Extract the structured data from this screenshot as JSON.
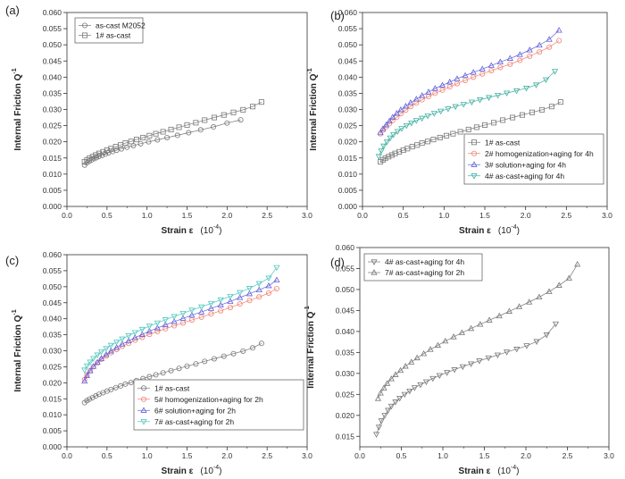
{
  "chart_data": [
    {
      "type": "scatter",
      "panel": "(a)",
      "xlabel": "Strain ε",
      "xunit": "(10",
      "xunit_exp": "-4",
      "ylabel": "Internal Friction Q",
      "ylabel_exp": "-1",
      "xlim": [
        0,
        3.0
      ],
      "ylim": [
        0,
        0.06
      ],
      "xticks": [
        "0.0",
        "0.5",
        "1.0",
        "1.5",
        "2.0",
        "2.5",
        "3.0"
      ],
      "yticks": [
        "0.000",
        "0.005",
        "0.010",
        "0.015",
        "0.020",
        "0.025",
        "0.030",
        "0.035",
        "0.040",
        "0.045",
        "0.050",
        "0.055",
        "0.060"
      ],
      "legend": "top-left",
      "series": [
        {
          "name": "as-cast M2052",
          "color": "#777777",
          "marker": "circle",
          "x": [
            0.22,
            0.25,
            0.28,
            0.31,
            0.34,
            0.37,
            0.4,
            0.44,
            0.48,
            0.52,
            0.57,
            0.62,
            0.68,
            0.75,
            0.83,
            0.92,
            1.02,
            1.13,
            1.25,
            1.38,
            1.52,
            1.67,
            1.83,
            2.0,
            2.17
          ],
          "y": [
            0.0128,
            0.0135,
            0.014,
            0.0144,
            0.0148,
            0.0151,
            0.0155,
            0.0158,
            0.0162,
            0.0166,
            0.017,
            0.0174,
            0.0178,
            0.0183,
            0.0188,
            0.0194,
            0.02,
            0.0206,
            0.0213,
            0.022,
            0.0228,
            0.0237,
            0.0246,
            0.0258,
            0.0268
          ]
        },
        {
          "name": "1#  as-cast",
          "color": "#777777",
          "marker": "square",
          "x": [
            0.22,
            0.25,
            0.28,
            0.32,
            0.36,
            0.4,
            0.45,
            0.5,
            0.55,
            0.61,
            0.67,
            0.73,
            0.8,
            0.87,
            0.95,
            1.03,
            1.11,
            1.2,
            1.3,
            1.4,
            1.5,
            1.61,
            1.72,
            1.84,
            1.96,
            2.08,
            2.2,
            2.32,
            2.43
          ],
          "y": [
            0.0138,
            0.0144,
            0.0149,
            0.0154,
            0.0159,
            0.0164,
            0.0169,
            0.0174,
            0.0179,
            0.0185,
            0.019,
            0.0196,
            0.0201,
            0.0207,
            0.0213,
            0.0219,
            0.0225,
            0.0231,
            0.0238,
            0.0245,
            0.0252,
            0.0259,
            0.0267,
            0.0275,
            0.0283,
            0.0291,
            0.0299,
            0.0309,
            0.0323
          ]
        }
      ]
    },
    {
      "type": "scatter",
      "panel": "(b)",
      "xlabel": "Strain ε",
      "xunit": "(10",
      "xunit_exp": "-4",
      "ylabel": "Internal Friction Q",
      "ylabel_exp": "-1",
      "xlim": [
        0,
        3.0
      ],
      "ylim": [
        0,
        0.06
      ],
      "xticks": [
        "0.0",
        "0.5",
        "1.0",
        "1.5",
        "2.0",
        "2.5",
        "3.0"
      ],
      "yticks": [
        "0.000",
        "0.005",
        "0.010",
        "0.015",
        "0.020",
        "0.025",
        "0.030",
        "0.035",
        "0.040",
        "0.045",
        "0.050",
        "0.055",
        "0.060"
      ],
      "legend": "bottom-right",
      "series": [
        {
          "name": "1#  as-cast",
          "color": "#777777",
          "marker": "square",
          "x": [
            0.22,
            0.25,
            0.28,
            0.32,
            0.36,
            0.4,
            0.45,
            0.5,
            0.55,
            0.61,
            0.67,
            0.73,
            0.8,
            0.87,
            0.95,
            1.03,
            1.11,
            1.2,
            1.3,
            1.4,
            1.5,
            1.61,
            1.72,
            1.84,
            1.96,
            2.08,
            2.2,
            2.32,
            2.43
          ],
          "y": [
            0.0138,
            0.0144,
            0.0149,
            0.0154,
            0.0159,
            0.0164,
            0.0169,
            0.0174,
            0.0179,
            0.0185,
            0.019,
            0.0196,
            0.0201,
            0.0207,
            0.0213,
            0.0219,
            0.0225,
            0.0231,
            0.0238,
            0.0245,
            0.0252,
            0.0259,
            0.0267,
            0.0275,
            0.0283,
            0.0291,
            0.0299,
            0.0309,
            0.0323
          ]
        },
        {
          "name": "2#  homogenization+aging for 4h",
          "color": "#f08070",
          "marker": "circle",
          "x": [
            0.22,
            0.25,
            0.29,
            0.33,
            0.37,
            0.42,
            0.47,
            0.53,
            0.59,
            0.66,
            0.73,
            0.81,
            0.89,
            0.98,
            1.07,
            1.16,
            1.26,
            1.36,
            1.47,
            1.58,
            1.69,
            1.81,
            1.93,
            2.05,
            2.17,
            2.29,
            2.41
          ],
          "y": [
            0.0225,
            0.0236,
            0.0246,
            0.0256,
            0.0266,
            0.0276,
            0.0287,
            0.0298,
            0.0309,
            0.032,
            0.033,
            0.034,
            0.035,
            0.036,
            0.037,
            0.038,
            0.039,
            0.04,
            0.041,
            0.042,
            0.043,
            0.044,
            0.0452,
            0.0465,
            0.0478,
            0.0493,
            0.0513
          ]
        },
        {
          "name": "3#  solution+aging for 4h",
          "color": "#6060dd",
          "marker": "triangle-up",
          "x": [
            0.22,
            0.25,
            0.29,
            0.33,
            0.37,
            0.42,
            0.47,
            0.53,
            0.59,
            0.66,
            0.73,
            0.81,
            0.89,
            0.98,
            1.07,
            1.16,
            1.26,
            1.36,
            1.47,
            1.58,
            1.69,
            1.81,
            1.93,
            2.05,
            2.17,
            2.29,
            2.41
          ],
          "y": [
            0.0228,
            0.024,
            0.0252,
            0.0264,
            0.0276,
            0.0288,
            0.0299,
            0.031,
            0.0321,
            0.0332,
            0.0343,
            0.0354,
            0.0365,
            0.0375,
            0.0385,
            0.0395,
            0.0405,
            0.0415,
            0.0425,
            0.0436,
            0.0447,
            0.0458,
            0.047,
            0.0484,
            0.0499,
            0.0517,
            0.0545
          ]
        },
        {
          "name": "4#  as-cast+aging for 4h",
          "color": "#40b0a0",
          "marker": "triangle-down",
          "x": [
            0.2,
            0.23,
            0.26,
            0.3,
            0.34,
            0.38,
            0.43,
            0.48,
            0.54,
            0.6,
            0.66,
            0.73,
            0.8,
            0.88,
            0.96,
            1.05,
            1.14,
            1.24,
            1.34,
            1.44,
            1.55,
            1.66,
            1.77,
            1.89,
            2.01,
            2.13,
            2.25,
            2.36
          ],
          "y": [
            0.0155,
            0.0172,
            0.0187,
            0.02,
            0.0212,
            0.0222,
            0.0232,
            0.0241,
            0.025,
            0.0258,
            0.0266,
            0.0273,
            0.028,
            0.0288,
            0.0295,
            0.0302,
            0.0309,
            0.0316,
            0.0323,
            0.033,
            0.0337,
            0.0344,
            0.0351,
            0.0358,
            0.0366,
            0.0376,
            0.0392,
            0.0418
          ]
        }
      ]
    },
    {
      "type": "scatter",
      "panel": "(c)",
      "xlabel": "Strain ε",
      "xunit": "(10",
      "xunit_exp": "-4",
      "ylabel": "Internal Friction Q",
      "ylabel_exp": "-1",
      "xlim": [
        0,
        3.0
      ],
      "ylim": [
        0,
        0.06
      ],
      "xticks": [
        "0.0",
        "0.5",
        "1.0",
        "1.5",
        "2.0",
        "2.5",
        "3.0"
      ],
      "yticks": [
        "0.000",
        "0.005",
        "0.010",
        "0.015",
        "0.020",
        "0.025",
        "0.030",
        "0.035",
        "0.040",
        "0.045",
        "0.050",
        "0.055",
        "0.060"
      ],
      "legend": "bottom-right",
      "series": [
        {
          "name": "1#  as-cast",
          "color": "#777777",
          "marker": "circle",
          "x": [
            0.22,
            0.25,
            0.28,
            0.32,
            0.36,
            0.4,
            0.45,
            0.5,
            0.55,
            0.61,
            0.67,
            0.73,
            0.8,
            0.87,
            0.95,
            1.03,
            1.11,
            1.2,
            1.3,
            1.4,
            1.5,
            1.61,
            1.72,
            1.84,
            1.96,
            2.08,
            2.2,
            2.32,
            2.43
          ],
          "y": [
            0.0138,
            0.0144,
            0.0149,
            0.0154,
            0.0159,
            0.0164,
            0.0169,
            0.0174,
            0.0179,
            0.0185,
            0.019,
            0.0196,
            0.0201,
            0.0207,
            0.0213,
            0.0219,
            0.0225,
            0.0231,
            0.0238,
            0.0245,
            0.0252,
            0.0259,
            0.0267,
            0.0275,
            0.0283,
            0.0291,
            0.0299,
            0.0309,
            0.0323
          ]
        },
        {
          "name": "5#  homogenization+aging for 2h",
          "color": "#f08070",
          "marker": "circle",
          "x": [
            0.22,
            0.25,
            0.29,
            0.33,
            0.38,
            0.43,
            0.49,
            0.55,
            0.62,
            0.69,
            0.77,
            0.85,
            0.94,
            1.03,
            1.13,
            1.23,
            1.34,
            1.45,
            1.56,
            1.68,
            1.8,
            1.92,
            2.04,
            2.16,
            2.28,
            2.4,
            2.52,
            2.62
          ],
          "y": [
            0.021,
            0.0225,
            0.0238,
            0.025,
            0.0262,
            0.0273,
            0.0284,
            0.0294,
            0.0304,
            0.0314,
            0.0323,
            0.0333,
            0.0342,
            0.0351,
            0.036,
            0.0369,
            0.0378,
            0.0387,
            0.0396,
            0.0405,
            0.0415,
            0.0425,
            0.0435,
            0.0446,
            0.0457,
            0.0468,
            0.048,
            0.0494
          ]
        },
        {
          "name": "6#  solution+aging for 2h",
          "color": "#6060dd",
          "marker": "triangle-up",
          "x": [
            0.22,
            0.25,
            0.29,
            0.33,
            0.38,
            0.43,
            0.49,
            0.55,
            0.62,
            0.69,
            0.77,
            0.85,
            0.94,
            1.03,
            1.13,
            1.23,
            1.34,
            1.45,
            1.56,
            1.68,
            1.8,
            1.92,
            2.04,
            2.16,
            2.28,
            2.4,
            2.52,
            2.62
          ],
          "y": [
            0.0205,
            0.0222,
            0.0237,
            0.0251,
            0.0264,
            0.0276,
            0.0288,
            0.0299,
            0.031,
            0.0321,
            0.0331,
            0.0341,
            0.0351,
            0.0361,
            0.0371,
            0.0381,
            0.0391,
            0.0401,
            0.0411,
            0.0421,
            0.0432,
            0.0443,
            0.0454,
            0.0466,
            0.0478,
            0.049,
            0.0503,
            0.0521
          ]
        },
        {
          "name": "7#  as-cast+aging for 2h",
          "color": "#50c8c0",
          "marker": "triangle-down",
          "x": [
            0.22,
            0.25,
            0.29,
            0.33,
            0.38,
            0.43,
            0.49,
            0.55,
            0.62,
            0.69,
            0.77,
            0.85,
            0.94,
            1.03,
            1.13,
            1.23,
            1.34,
            1.45,
            1.56,
            1.68,
            1.8,
            1.92,
            2.04,
            2.16,
            2.28,
            2.4,
            2.52,
            2.62
          ],
          "y": [
            0.024,
            0.0253,
            0.0265,
            0.0276,
            0.0287,
            0.0297,
            0.0307,
            0.0317,
            0.0327,
            0.0337,
            0.0347,
            0.0357,
            0.0367,
            0.0377,
            0.0387,
            0.0397,
            0.0407,
            0.0417,
            0.0427,
            0.0437,
            0.0448,
            0.0459,
            0.047,
            0.0482,
            0.0495,
            0.051,
            0.0527,
            0.056
          ]
        }
      ]
    },
    {
      "type": "scatter",
      "panel": "(d)",
      "xlabel": "Strain ε",
      "xunit": "(10",
      "xunit_exp": "-4",
      "ylabel": "Internal Friction Q",
      "ylabel_exp": "-1",
      "xlim": [
        0,
        3.0
      ],
      "ylim": [
        0.0125,
        0.06
      ],
      "xticks": [
        "0.0",
        "0.5",
        "1.0",
        "1.5",
        "2.0",
        "2.5",
        "3.0"
      ],
      "yticks": [
        "0.015",
        "0.020",
        "0.025",
        "0.030",
        "0.035",
        "0.040",
        "0.045",
        "0.050",
        "0.055",
        "0.060"
      ],
      "legend": "top-left",
      "series": [
        {
          "name": "4#  as-cast+aging for 4h",
          "color": "#777777",
          "marker": "triangle-down",
          "x": [
            0.2,
            0.23,
            0.26,
            0.3,
            0.34,
            0.38,
            0.43,
            0.48,
            0.54,
            0.6,
            0.66,
            0.73,
            0.8,
            0.88,
            0.96,
            1.05,
            1.14,
            1.24,
            1.34,
            1.44,
            1.55,
            1.66,
            1.77,
            1.89,
            2.01,
            2.13,
            2.25,
            2.36
          ],
          "y": [
            0.0155,
            0.0172,
            0.0187,
            0.02,
            0.0212,
            0.0222,
            0.0232,
            0.0241,
            0.025,
            0.0258,
            0.0266,
            0.0273,
            0.028,
            0.0288,
            0.0295,
            0.0302,
            0.0309,
            0.0316,
            0.0323,
            0.033,
            0.0337,
            0.0344,
            0.0351,
            0.0358,
            0.0366,
            0.0376,
            0.0392,
            0.0418
          ]
        },
        {
          "name": "7#  as-cast+aging for 2h",
          "color": "#777777",
          "marker": "triangle-up",
          "x": [
            0.22,
            0.25,
            0.29,
            0.33,
            0.38,
            0.43,
            0.49,
            0.55,
            0.62,
            0.69,
            0.77,
            0.85,
            0.94,
            1.03,
            1.13,
            1.23,
            1.34,
            1.45,
            1.56,
            1.68,
            1.8,
            1.92,
            2.04,
            2.16,
            2.28,
            2.4,
            2.52,
            2.62
          ],
          "y": [
            0.024,
            0.0253,
            0.0265,
            0.0276,
            0.0287,
            0.0297,
            0.0307,
            0.0317,
            0.0327,
            0.0337,
            0.0347,
            0.0357,
            0.0367,
            0.0377,
            0.0387,
            0.0397,
            0.0407,
            0.0417,
            0.0427,
            0.0437,
            0.0448,
            0.0459,
            0.047,
            0.0482,
            0.0495,
            0.051,
            0.0527,
            0.056
          ]
        }
      ]
    }
  ]
}
